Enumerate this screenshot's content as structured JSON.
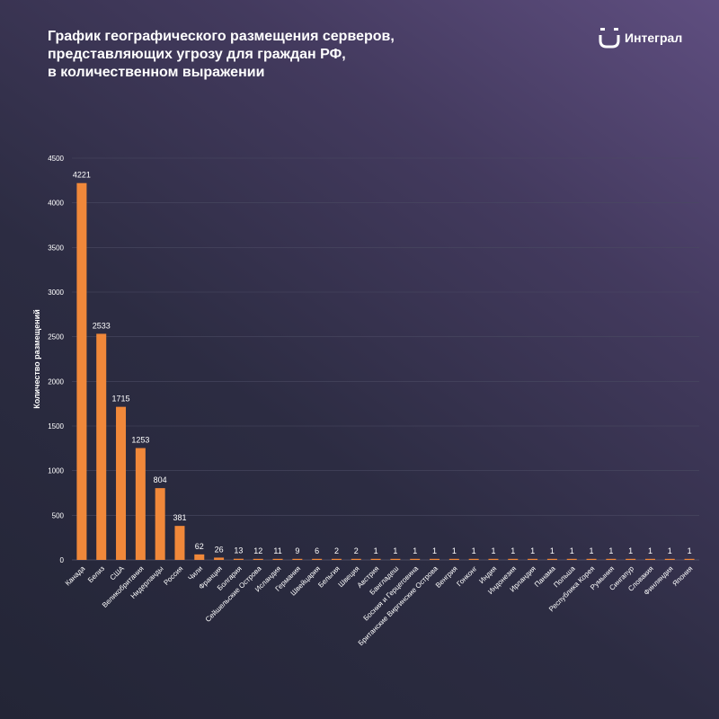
{
  "header": {
    "title_lines": [
      "График географического размещения серверов,",
      "представляющих угрозу для граждан РФ,",
      "в количественном выражении"
    ]
  },
  "brand": {
    "name": "Интеграл",
    "logo_icon": "integral-logo-icon"
  },
  "colors": {
    "bar": "#f0883a",
    "grid": "#4a4a62",
    "text": "#ffffff"
  },
  "chart_data": {
    "type": "bar",
    "title": "График географического размещения серверов, представляющих угрозу для граждан РФ, в количественном выражении",
    "xlabel": "",
    "ylabel": "Количество размещений",
    "ylim": [
      0,
      4500
    ],
    "yticks": [
      0,
      500,
      1000,
      1500,
      2000,
      2500,
      3000,
      3500,
      4000,
      4500
    ],
    "grid": true,
    "categories": [
      "Канада",
      "Белиз",
      "США",
      "Великобритания",
      "Нидерланды",
      "Россия",
      "Чили",
      "Франция",
      "Болгария",
      "Сейшельские Острова",
      "Исландия",
      "Германия",
      "Швейцария",
      "Бельгия",
      "Швеция",
      "Австрия",
      "Бангладеш",
      "Босния и Герцеговина",
      "Британские Виргинские Острова",
      "Венгрия",
      "Гонконг",
      "Индия",
      "Индонезия",
      "Ирландия",
      "Панама",
      "Польша",
      "Республика Корея",
      "Румыния",
      "Сингапур",
      "Словакия",
      "Финляндия",
      "Япония"
    ],
    "values": [
      4221,
      2533,
      1715,
      1253,
      804,
      381,
      62,
      26,
      13,
      12,
      11,
      9,
      6,
      2,
      2,
      1,
      1,
      1,
      1,
      1,
      1,
      1,
      1,
      1,
      1,
      1,
      1,
      1,
      1,
      1,
      1,
      1
    ]
  }
}
